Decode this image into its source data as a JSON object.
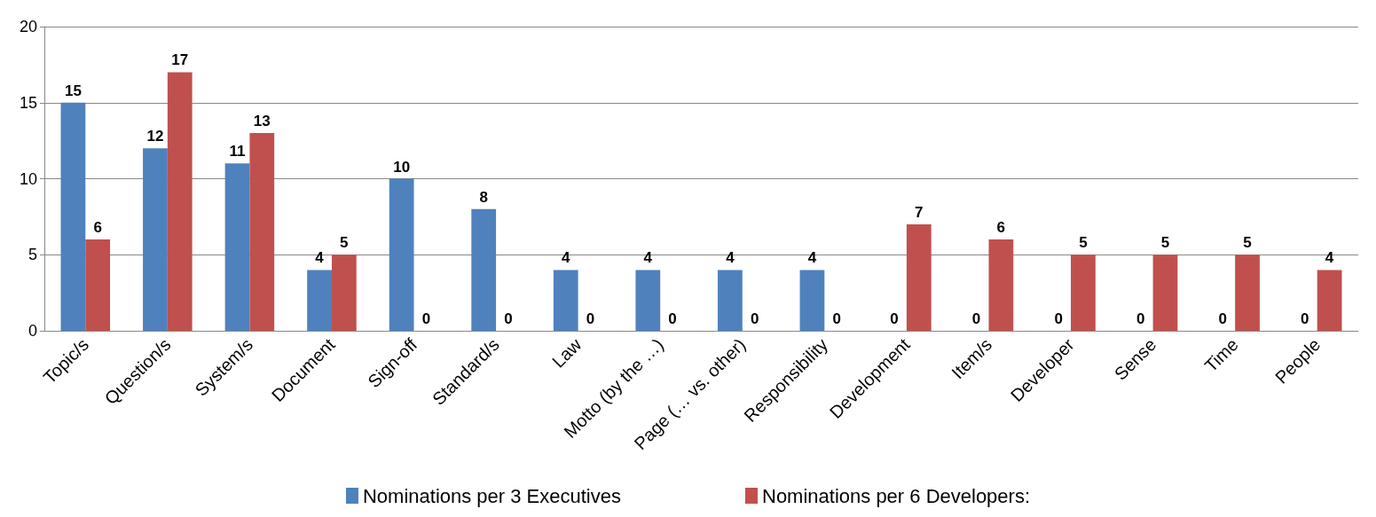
{
  "chart_data": {
    "type": "bar",
    "categories": [
      "Topic/s",
      "Question/s",
      "System/s",
      "Document",
      "Sign-off",
      "Standard/s",
      "Law",
      "Motto (by the …)",
      "Page (… vs. other)",
      "Responsibility",
      "Development",
      "Item/s",
      "Developer",
      "Sense",
      "Time",
      "People"
    ],
    "series": [
      {
        "name": "Nominations per 3 Executives",
        "color": "#4f81bd",
        "values": [
          15,
          12,
          11,
          4,
          10,
          8,
          4,
          4,
          4,
          4,
          0,
          0,
          0,
          0,
          0,
          0
        ]
      },
      {
        "name": "Nominations per 6 Developers:",
        "color": "#c0504d",
        "values": [
          6,
          17,
          13,
          5,
          0,
          0,
          0,
          0,
          0,
          0,
          7,
          6,
          5,
          5,
          5,
          4
        ]
      }
    ],
    "ylim": [
      0,
      20
    ],
    "yticks": [
      0,
      5,
      10,
      15,
      20
    ],
    "grid": "y",
    "legend": "bottom",
    "data_labels": true
  }
}
